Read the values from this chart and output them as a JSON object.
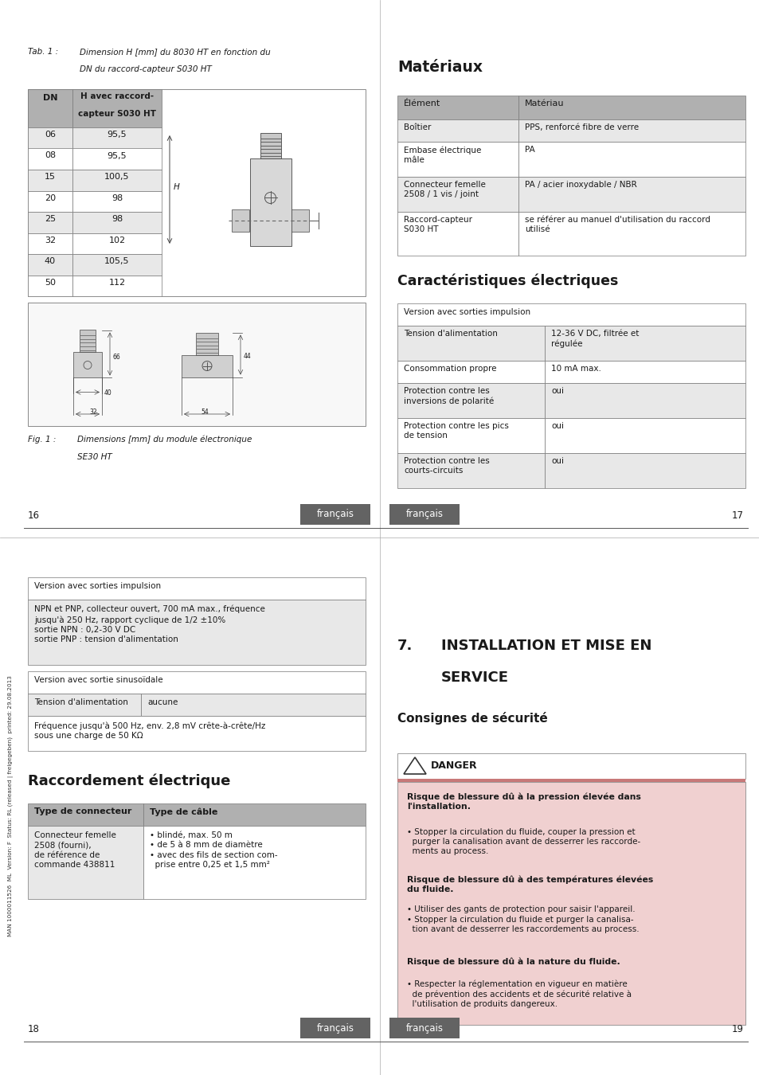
{
  "page_bg": "#ffffff",
  "page_width": 9.54,
  "page_height": 13.5,
  "tab1_rows": [
    [
      "06",
      "95,5"
    ],
    [
      "08",
      "95,5"
    ],
    [
      "15",
      "100,5"
    ],
    [
      "20",
      "98"
    ],
    [
      "25",
      "98"
    ],
    [
      "32",
      "102"
    ],
    [
      "40",
      "105,5"
    ],
    [
      "50",
      "112"
    ]
  ],
  "page_num_left": "16",
  "page_num_right": "17",
  "page_num_left2": "18",
  "page_num_right2": "19",
  "francais_label": "français",
  "francais_bg": "#636363",
  "francais_fg": "#ffffff",
  "sidebar_text": "MAN 1000011526  ML  Version: F  Status: RL (released | freigegeben)  printed: 29.08.2013",
  "materiaux_title": "Matériaux",
  "materiaux_headers": [
    "Élément",
    "Matériau"
  ],
  "materiaux_rows": [
    [
      "Boîtier",
      "PPS, renforcé fibre de verre"
    ],
    [
      "Embase électrique\nmâle",
      "PA"
    ],
    [
      "Connecteur femelle\n2508 / 1 vis / joint",
      "PA / acier inoxydable / NBR"
    ],
    [
      "Raccord-capteur\nS030 HT",
      "se référer au manuel d'utilisation du raccord\nutilisé"
    ]
  ],
  "caract_title": "Caractéristiques électriques",
  "caract_section1_header": "Version avec sorties impulsion",
  "caract_rows": [
    [
      "Tension d'alimentation",
      "12-36 V DC, filtrée et\nrégulée",
      "odd"
    ],
    [
      "Consommation propre",
      "10 mA max.",
      "even"
    ],
    [
      "Protection contre les\ninversions de polarité",
      "oui",
      "odd"
    ],
    [
      "Protection contre les pics\nde tension",
      "oui",
      "even"
    ],
    [
      "Protection contre les\ncourts-circuits",
      "oui",
      "odd"
    ]
  ],
  "raccordement_title": "Raccordement électrique",
  "raccordement_headers": [
    "Type de connecteur",
    "Type de câble"
  ],
  "raccordement_row_col1": "Connecteur femelle\n2508 (fourni),\nde référence de\ncommande 438811",
  "raccordement_row_col2": "• blindé, max. 50 m\n• de 5 à 8 mm de diamètre\n• avec des fils de section com-\n  prise entre 0,25 et 1,5 mm²",
  "impulsion_section_header": "Version avec sorties impulsion",
  "impulsion_row1": "NPN et PNP, collecteur ouvert, 700 mA max., fréquence\njusqu'à 250 Hz, rapport cyclique de 1/2 ±10%\nsortie NPN : 0,2-30 V DC\nsortie PNP : tension d'alimentation",
  "sinus_section_header": "Version avec sortie sinusoïdale",
  "sinus_row1_col1": "Tension d'alimentation",
  "sinus_row1_col2": "aucune",
  "sinus_row2": "Fréquence jusqu'à 500 Hz, env. 2,8 mV crête-à-crête/Hz\nsous une charge de 50 KΩ",
  "installation_num": "7.",
  "installation_text1": "INSTALLATION ET MISE EN",
  "installation_text2": "SERVICE",
  "consignes_title": "Consignes de sécurité",
  "danger_label": "DANGER",
  "danger_stripe_color": "#c87878",
  "danger_bg": "#f0d0d0",
  "danger_text1_bold": "Risque de blessure dû à la pression élevée dans\nl'installation.",
  "danger_text1_body": "• Stopper la circulation du fluide, couper la pression et\n  purger la canalisation avant de desserrer les raccorde-\n  ments au process.",
  "danger_text2_bold": "Risque de blessure dû à des températures élevées\ndu fluide.",
  "danger_text2_body": "• Utiliser des gants de protection pour saisir l'appareil.\n• Stopper la circulation du fluide et purger la canalisa-\n  tion avant de desserrer les raccordements au process.",
  "danger_text3_bold": "Risque de blessure dû à la nature du fluide.",
  "danger_text3_body": "• Respecter la réglementation en vigueur en matière\n  de prévention des accidents et de sécurité relative à\n  l'utilisation de produits dangereux.",
  "header_bg": "#b0b0b0",
  "row_light": "#e8e8e8",
  "row_white": "#ffffff",
  "border_color": "#777777"
}
